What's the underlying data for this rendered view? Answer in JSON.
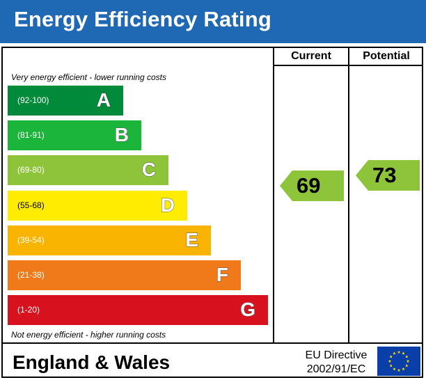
{
  "title": "Energy Efficiency Rating",
  "columns": {
    "current": "Current",
    "potential": "Potential"
  },
  "notes": {
    "top": "Very energy efficient - lower running costs",
    "bottom": "Not energy efficient - higher running costs"
  },
  "chart_data": {
    "type": "bar",
    "categories": [
      "A",
      "B",
      "C",
      "D",
      "E",
      "F",
      "G"
    ],
    "ranges": [
      "(92-100)",
      "(81-91)",
      "(69-80)",
      "(55-68)",
      "(39-54)",
      "(21-38)",
      "(1-20)"
    ],
    "range_low": [
      92,
      81,
      69,
      55,
      39,
      21,
      1
    ],
    "range_high": [
      100,
      91,
      80,
      68,
      54,
      38,
      20
    ],
    "band_colors": [
      "#008a3a",
      "#1cb53c",
      "#8dc43a",
      "#ffec00",
      "#f8b400",
      "#f07a1a",
      "#d7121e"
    ],
    "current": 69,
    "potential": 73,
    "arrow_color": "#8dc43a"
  },
  "footer": {
    "region": "England & Wales",
    "directive_line1": "EU Directive",
    "directive_line2": "2002/91/EC"
  },
  "colors": {
    "header": "#1f68b4",
    "eu_blue": "#0a3ea8",
    "eu_star": "#ffdd00"
  }
}
